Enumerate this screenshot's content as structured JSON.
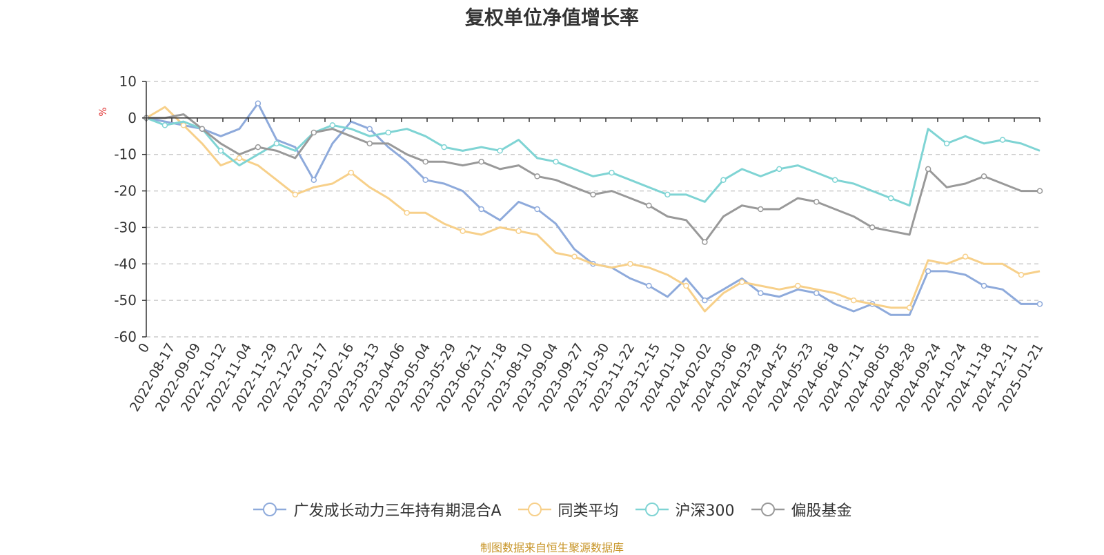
{
  "chart_data": {
    "type": "line",
    "title": "复权单位净值增长率",
    "ylabel": "%",
    "ylim": [
      -60,
      10
    ],
    "yticks": [
      10,
      0,
      -10,
      -20,
      -30,
      -40,
      -50,
      -60
    ],
    "x_ticks": [
      "0",
      "2022-08-17",
      "2022-09-09",
      "2022-10-12",
      "2022-11-04",
      "2022-11-29",
      "2022-12-22",
      "2023-01-17",
      "2023-02-16",
      "2023-03-13",
      "2023-04-06",
      "2023-05-04",
      "2023-05-29",
      "2023-06-21",
      "2023-07-18",
      "2023-08-10",
      "2023-09-04",
      "2023-09-27",
      "2023-10-30",
      "2023-11-22",
      "2023-12-15",
      "2024-01-10",
      "2024-02-02",
      "2024-03-06",
      "2024-03-29",
      "2024-04-25",
      "2024-05-23",
      "2024-06-18",
      "2024-07-11",
      "2024-08-05",
      "2024-08-28",
      "2024-09-24",
      "2024-10-24",
      "2024-11-18",
      "2024-12-11",
      "2025-01-21"
    ],
    "grid": true,
    "legend_position": "bottom",
    "series": [
      {
        "name": "广发成长动力三年持有期混合A",
        "color": "#8eaadb",
        "values": [
          0,
          -1,
          -2,
          -3,
          -5,
          -3,
          4,
          -6,
          -8,
          -17,
          -7,
          -1,
          -3,
          -8,
          -12,
          -17,
          -18,
          -20,
          -25,
          -28,
          -23,
          -25,
          -29,
          -36,
          -40,
          -41,
          -44,
          -46,
          -49,
          -44,
          -50,
          -47,
          -44,
          -48,
          -49,
          -47,
          -48,
          -51,
          -53,
          -51,
          -54,
          -54,
          -42,
          -42,
          -43,
          -46,
          -47,
          -51,
          -51
        ]
      },
      {
        "name": "同类平均",
        "color": "#f7d08a",
        "values": [
          0,
          3,
          -2,
          -7,
          -13,
          -11,
          -13,
          -17,
          -21,
          -19,
          -18,
          -15,
          -19,
          -22,
          -26,
          -26,
          -29,
          -31,
          -32,
          -30,
          -31,
          -32,
          -37,
          -38,
          -40,
          -41,
          -40,
          -41,
          -43,
          -46,
          -53,
          -48,
          -45,
          -46,
          -47,
          -46,
          -47,
          -48,
          -50,
          -51,
          -52,
          -52,
          -39,
          -40,
          -38,
          -40,
          -40,
          -43,
          -42
        ]
      },
      {
        "name": "沪深300",
        "color": "#7fd4d4",
        "values": [
          0,
          -2,
          -1,
          -3,
          -9,
          -13,
          -10,
          -7,
          -9,
          -4,
          -2,
          -3,
          -5,
          -4,
          -3,
          -5,
          -8,
          -9,
          -8,
          -9,
          -6,
          -11,
          -12,
          -14,
          -16,
          -15,
          -17,
          -19,
          -21,
          -21,
          -23,
          -17,
          -14,
          -16,
          -14,
          -13,
          -15,
          -17,
          -18,
          -20,
          -22,
          -24,
          -3,
          -7,
          -5,
          -7,
          -6,
          -7,
          -9
        ]
      },
      {
        "name": "偏股基金",
        "color": "#999999",
        "values": [
          0,
          0,
          1,
          -3,
          -7,
          -10,
          -8,
          -9,
          -11,
          -4,
          -3,
          -5,
          -7,
          -7,
          -10,
          -12,
          -12,
          -13,
          -12,
          -14,
          -13,
          -16,
          -17,
          -19,
          -21,
          -20,
          -22,
          -24,
          -27,
          -28,
          -34,
          -27,
          -24,
          -25,
          -25,
          -22,
          -23,
          -25,
          -27,
          -30,
          -31,
          -32,
          -14,
          -19,
          -18,
          -16,
          -18,
          -20,
          -20
        ]
      }
    ]
  },
  "source_note": "制图数据来自恒生聚源数据库"
}
